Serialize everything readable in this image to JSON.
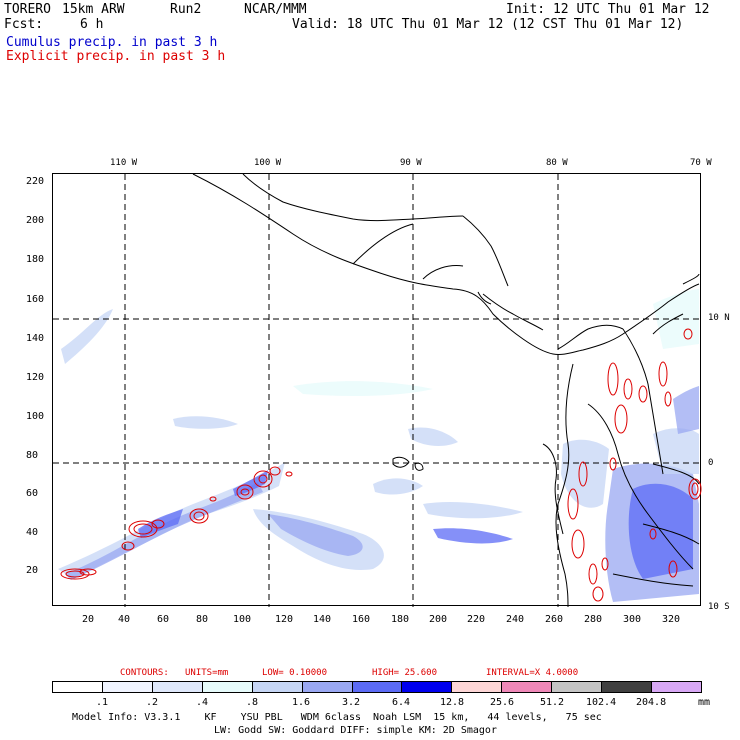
{
  "header": {
    "model": "TORERO",
    "resolution": "15km ARW",
    "run": "Run2",
    "org": "NCAR/MMM",
    "init": "Init: 12 UTC Thu 01 Mar 12",
    "fcst_label": "Fcst:",
    "fcst_value": "6 h",
    "valid": "Valid: 18 UTC Thu 01 Mar 12 (12 CST Thu 01 Mar 12)",
    "field1": "Cumulus precip. in past 3 h",
    "field2": "Explicit precip. in past 3 h"
  },
  "map": {
    "top_lon_labels": [
      "110 W",
      "100 W",
      "90 W",
      "80 W",
      "70 W"
    ],
    "right_lat_labels": [
      "10 N",
      "0",
      "10 S"
    ],
    "y_ticks": [
      "20",
      "40",
      "60",
      "80",
      "100",
      "120",
      "140",
      "160",
      "180",
      "200",
      "220"
    ],
    "x_ticks": [
      "20",
      "40",
      "60",
      "80",
      "100",
      "120",
      "140",
      "160",
      "180",
      "200",
      "220",
      "240",
      "260",
      "280",
      "300",
      "320"
    ]
  },
  "contours": {
    "label": "CONTOURS:",
    "units": "UNITS=mm",
    "low": "LOW= 0.10000",
    "high": "HIGH= 25.600",
    "interval": "INTERVAL=X 4.0000"
  },
  "legend": {
    "values": [
      ".1",
      ".2",
      ".4",
      ".8",
      "1.6",
      "3.2",
      "6.4",
      "12.8",
      "25.6",
      "51.2",
      "102.4",
      "204.8"
    ],
    "unit": "mm",
    "colors": [
      "#ffffff",
      "#f0f4ff",
      "#dfe8fb",
      "#e6fbfb",
      "#c6d6f5",
      "#9aa8f2",
      "#5c6bf5",
      "#0000ee",
      "#fdd6d6",
      "#ef88b8",
      "#c4c4c4",
      "#404040",
      "#d8a8f5"
    ]
  },
  "footer": {
    "line1": "Model Info: V3.3.1    KF    YSU PBL   WDM 6class  Noah LSM  15 km,   44 levels,   75 sec",
    "line2": "LW: Godd SW: Goddard DIFF: simple KM: 2D Smagor"
  }
}
